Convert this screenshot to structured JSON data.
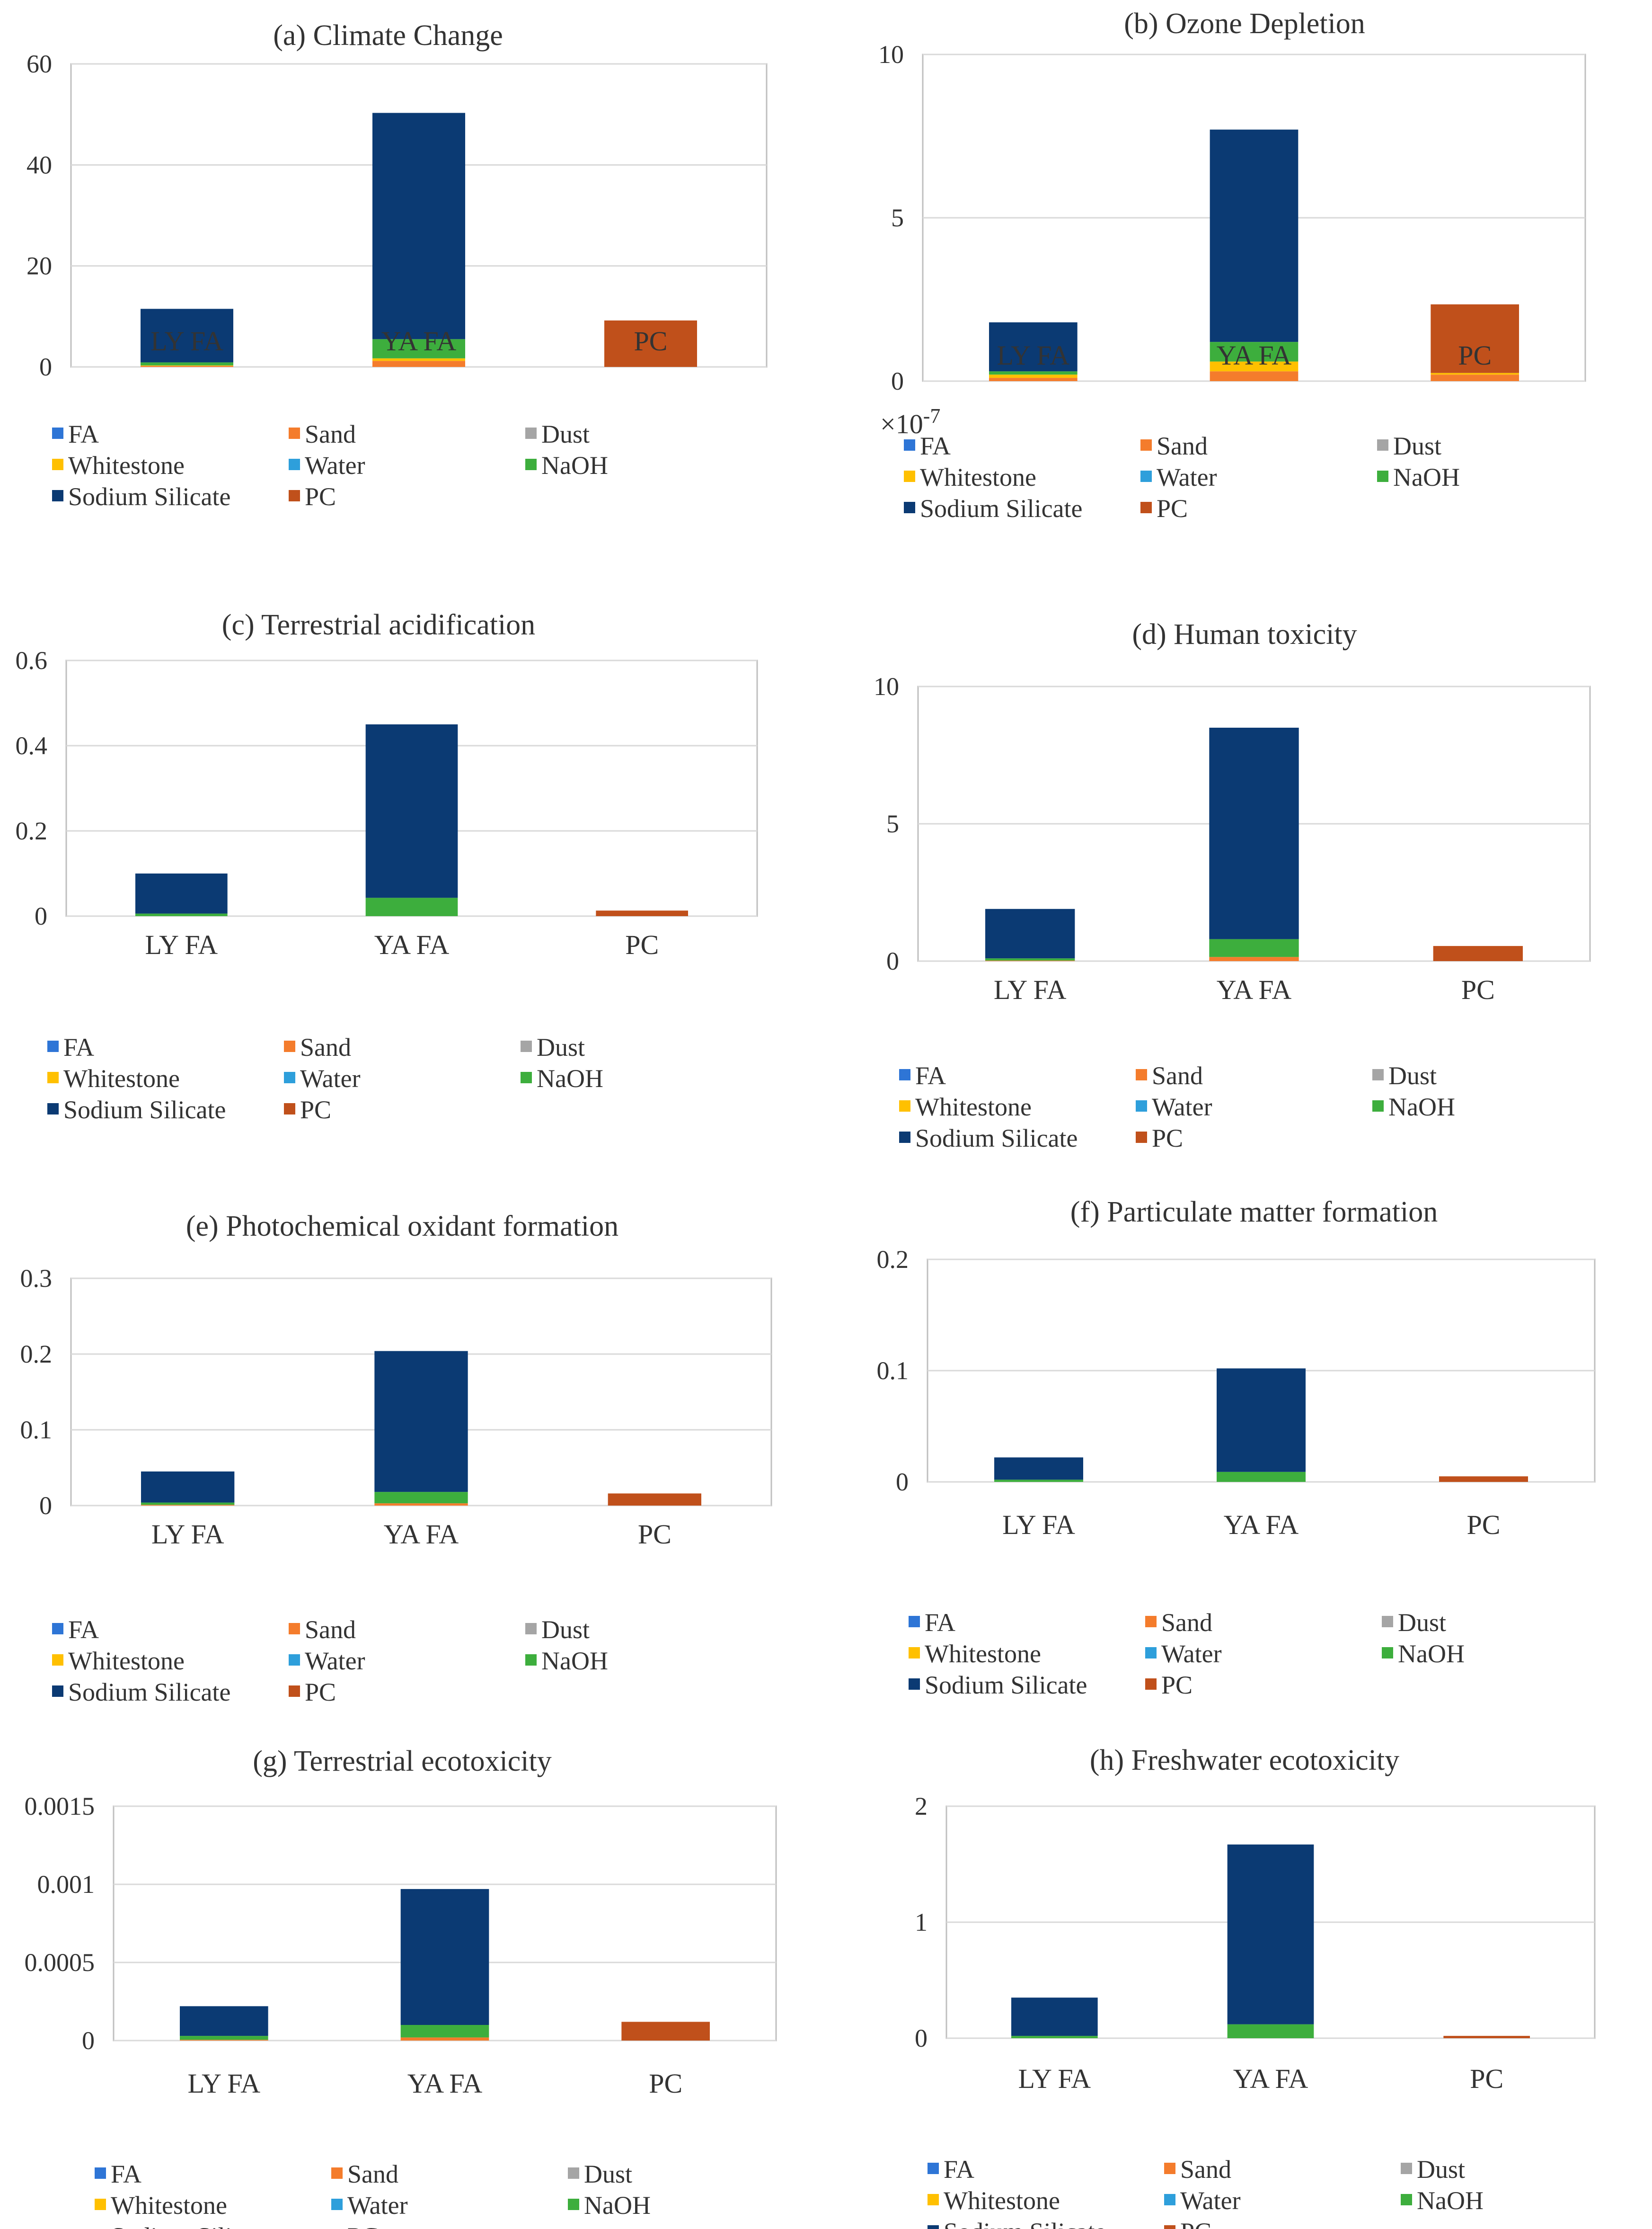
{
  "colors": {
    "FA": "#2E75D6",
    "Sand": "#F47C2C",
    "Dust": "#A5A5A5",
    "Whitestone": "#FFC000",
    "Water": "#2E9FDB",
    "NaOH": "#3DAE3D",
    "Sodium Silicate": "#0B3A73",
    "PC": "#C0501B"
  },
  "legend_items": [
    "FA",
    "Sand",
    "Dust",
    "Whitestone",
    "Water",
    "NaOH",
    "Sodium Silicate",
    "PC"
  ],
  "chart_data": [
    {
      "type": "bar",
      "stacked": true,
      "title": "(a) Climate Change",
      "categories": [
        "LY FA",
        "YA FA",
        "PC"
      ],
      "ylim": [
        0,
        60
      ],
      "yticks": [
        "0",
        "20",
        "40",
        "60"
      ],
      "ytick_values": [
        0,
        20,
        40,
        60
      ],
      "scale_label": "",
      "series": [
        {
          "name": "Sand",
          "values": [
            0.2,
            1.2,
            0
          ]
        },
        {
          "name": "Whitestone",
          "values": [
            0.1,
            0.5,
            0
          ]
        },
        {
          "name": "NaOH",
          "values": [
            0.6,
            3.8,
            0
          ]
        },
        {
          "name": "Sodium Silicate",
          "values": [
            10.6,
            44.8,
            0
          ]
        },
        {
          "name": "PC",
          "values": [
            0,
            0,
            9.2
          ]
        }
      ]
    },
    {
      "type": "bar",
      "stacked": true,
      "title": "(b) Ozone Depletion",
      "categories": [
        "LY FA",
        "YA FA",
        "PC"
      ],
      "ylim": [
        0,
        10
      ],
      "yticks": [
        "0",
        "5",
        "10"
      ],
      "ytick_values": [
        0,
        5,
        10
      ],
      "scale_label": "×10-7",
      "series": [
        {
          "name": "Sand",
          "values": [
            0.1,
            0.3,
            0.2
          ]
        },
        {
          "name": "Whitestone",
          "values": [
            0.1,
            0.3,
            0.05
          ]
        },
        {
          "name": "NaOH",
          "values": [
            0.1,
            0.6,
            0
          ]
        },
        {
          "name": "Sodium Silicate",
          "values": [
            1.5,
            6.5,
            0
          ]
        },
        {
          "name": "PC",
          "values": [
            0,
            0,
            2.1
          ]
        }
      ]
    },
    {
      "type": "bar",
      "stacked": true,
      "title": "(c) Terrestrial acidification",
      "categories": [
        "LY FA",
        "YA FA",
        "PC"
      ],
      "ylim": [
        0,
        0.6
      ],
      "yticks": [
        "0",
        "0.2",
        "0.4",
        "0.6"
      ],
      "ytick_values": [
        0,
        0.2,
        0.4,
        0.6
      ],
      "scale_label": "",
      "series": [
        {
          "name": "NaOH",
          "values": [
            0.006,
            0.043,
            0
          ]
        },
        {
          "name": "Sodium Silicate",
          "values": [
            0.094,
            0.407,
            0
          ]
        },
        {
          "name": "PC",
          "values": [
            0,
            0,
            0.013
          ]
        }
      ]
    },
    {
      "type": "bar",
      "stacked": true,
      "title": "(d) Human  toxicity",
      "categories": [
        "LY FA",
        "YA FA",
        "PC"
      ],
      "ylim": [
        0,
        10
      ],
      "yticks": [
        "0",
        "5",
        "10"
      ],
      "ytick_values": [
        0,
        5,
        10
      ],
      "scale_label": "",
      "series": [
        {
          "name": "Sand",
          "values": [
            0.02,
            0.15,
            0
          ]
        },
        {
          "name": "NaOH",
          "values": [
            0.08,
            0.65,
            0
          ]
        },
        {
          "name": "Sodium Silicate",
          "values": [
            1.8,
            7.7,
            0
          ]
        },
        {
          "name": "PC",
          "values": [
            0,
            0,
            0.55
          ]
        }
      ]
    },
    {
      "type": "bar",
      "stacked": true,
      "title": "(e) Photochemical  oxidant  formation",
      "categories": [
        "LY FA",
        "YA FA",
        "PC"
      ],
      "ylim": [
        0,
        0.3
      ],
      "yticks": [
        "0",
        "0.1",
        "0.2",
        "0.3"
      ],
      "ytick_values": [
        0,
        0.1,
        0.2,
        0.3
      ],
      "scale_label": "",
      "series": [
        {
          "name": "Sand",
          "values": [
            0.001,
            0.003,
            0
          ]
        },
        {
          "name": "NaOH",
          "values": [
            0.003,
            0.015,
            0
          ]
        },
        {
          "name": "Sodium Silicate",
          "values": [
            0.041,
            0.186,
            0
          ]
        },
        {
          "name": "PC",
          "values": [
            0,
            0,
            0.016
          ]
        }
      ]
    },
    {
      "type": "bar",
      "stacked": true,
      "title": "(f) Particulate matter  formation",
      "categories": [
        "LY FA",
        "YA FA",
        "PC"
      ],
      "ylim": [
        0,
        0.2
      ],
      "yticks": [
        "0",
        "0.1",
        "0.2"
      ],
      "ytick_values": [
        0,
        0.1,
        0.2
      ],
      "scale_label": "",
      "series": [
        {
          "name": "NaOH",
          "values": [
            0.002,
            0.009,
            0
          ]
        },
        {
          "name": "Sodium Silicate",
          "values": [
            0.02,
            0.093,
            0
          ]
        },
        {
          "name": "PC",
          "values": [
            0,
            0,
            0.005
          ]
        }
      ]
    },
    {
      "type": "bar",
      "stacked": true,
      "title": "(g) Terrestrial ecotoxicity",
      "categories": [
        "LY FA",
        "YA FA",
        "PC"
      ],
      "ylim": [
        0,
        0.0015
      ],
      "yticks": [
        "0",
        "0.0005",
        "0.001",
        "0.0015"
      ],
      "ytick_values": [
        0,
        0.0005,
        0.001,
        0.0015
      ],
      "scale_label": "",
      "series": [
        {
          "name": "Sand",
          "values": [
            5e-06,
            2e-05,
            0
          ]
        },
        {
          "name": "NaOH",
          "values": [
            2.5e-05,
            8e-05,
            0
          ]
        },
        {
          "name": "Sodium Silicate",
          "values": [
            0.00019,
            0.00087,
            0
          ]
        },
        {
          "name": "PC",
          "values": [
            0,
            0,
            0.00012
          ]
        }
      ]
    },
    {
      "type": "bar",
      "stacked": true,
      "title": "(h) Freshwater ecotoxicity",
      "categories": [
        "LY FA",
        "YA FA",
        "PC"
      ],
      "ylim": [
        0,
        2
      ],
      "yticks": [
        "0",
        "1",
        "2"
      ],
      "ytick_values": [
        0,
        1,
        2
      ],
      "scale_label": "",
      "series": [
        {
          "name": "NaOH",
          "values": [
            0.02,
            0.12,
            0
          ]
        },
        {
          "name": "Sodium Silicate",
          "values": [
            0.33,
            1.55,
            0
          ]
        },
        {
          "name": "PC",
          "values": [
            0,
            0,
            0.02
          ]
        }
      ]
    }
  ]
}
